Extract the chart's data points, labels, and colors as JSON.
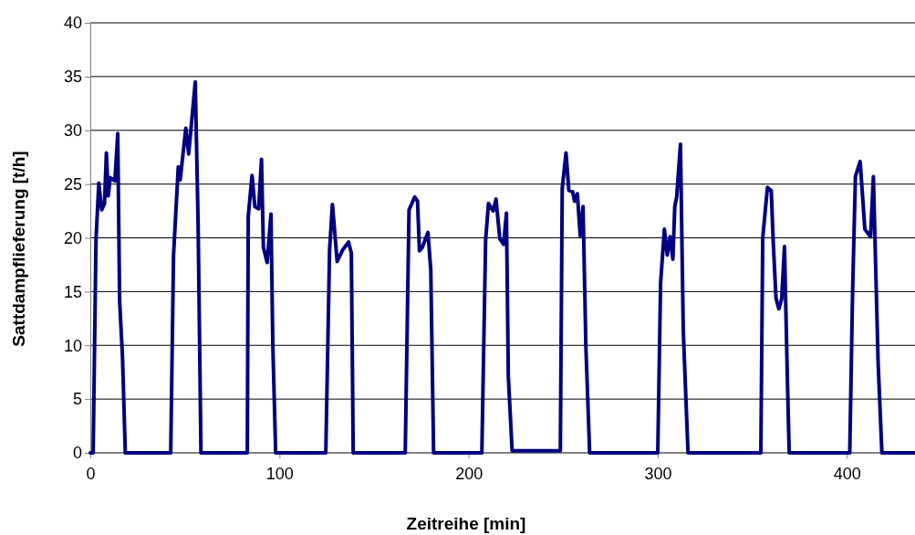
{
  "chart_data": {
    "type": "line",
    "xlabel": "Zeitreihe [min]",
    "ylabel": "Sattdampflieferung [t/h]",
    "xlim": [
      0,
      436
    ],
    "xticks": [
      0,
      100,
      200,
      300,
      400
    ],
    "ylim": [
      0,
      40
    ],
    "yticks": [
      0,
      5,
      10,
      15,
      20,
      25,
      30,
      35,
      40
    ],
    "grid": "y",
    "marker": "none",
    "line_style": "solid",
    "series": [
      {
        "color": "#000080",
        "x": [
          0,
          1.5,
          3,
          4.5,
          6,
          7.5,
          8.5,
          9.5,
          10.5,
          13,
          14.5,
          15.5,
          17,
          18.5,
          42.5,
          44,
          46.5,
          47.5,
          50.5,
          52,
          55.5,
          57,
          58.5,
          83,
          83.5,
          85.5,
          87,
          89,
          90.5,
          91.5,
          93.5,
          95.5,
          96.5,
          98,
          124.5,
          126.5,
          128,
          130.5,
          133.5,
          136.5,
          138,
          139,
          166.5,
          168.5,
          171.5,
          173,
          174,
          175.5,
          177,
          178.5,
          180,
          181.5,
          207,
          209,
          210.5,
          213,
          214.5,
          216.5,
          218.5,
          220,
          221,
          223,
          248.5,
          249.5,
          251.5,
          253,
          255,
          256,
          257.5,
          259,
          260.5,
          262,
          264,
          300,
          301.5,
          303.5,
          305,
          306.5,
          308,
          309,
          310,
          312,
          313.5,
          316,
          354.5,
          355.5,
          358,
          360,
          361,
          362.5,
          364,
          365.5,
          367,
          368.5,
          369.5,
          401.5,
          403,
          404.5,
          407,
          409.5,
          412.5,
          414,
          416.5,
          418.5,
          436
        ],
        "values": [
          0,
          0,
          19.8,
          25.1,
          22.6,
          23.2,
          27.9,
          23.9,
          25.6,
          25.3,
          29.7,
          14.1,
          9,
          0,
          0,
          18.4,
          26.6,
          25.4,
          30.2,
          27.8,
          34.5,
          21.2,
          0,
          0,
          22,
          25.8,
          22.9,
          22.7,
          27.3,
          19.1,
          17.7,
          22.2,
          9.9,
          0,
          0,
          18.9,
          23.1,
          17.8,
          18.9,
          19.6,
          18.6,
          0,
          0,
          22.6,
          23.8,
          23.4,
          18.8,
          19.1,
          19.8,
          20.5,
          17,
          0,
          0,
          19.8,
          23.2,
          22.5,
          23.6,
          19.9,
          19.4,
          22.3,
          7.1,
          0.2,
          0.2,
          24.6,
          27.9,
          24.4,
          24.3,
          23.4,
          24.1,
          20.2,
          22.9,
          9.9,
          0,
          0,
          15.8,
          20.8,
          18.4,
          20.1,
          18,
          22.9,
          23.8,
          28.7,
          11.3,
          0,
          0,
          20,
          24.7,
          24.4,
          19.8,
          14.4,
          13.4,
          14.3,
          19.2,
          7.1,
          0,
          0,
          14.9,
          25.7,
          27.1,
          20.8,
          20.1,
          25.7,
          8.4,
          0,
          0
        ]
      }
    ]
  }
}
